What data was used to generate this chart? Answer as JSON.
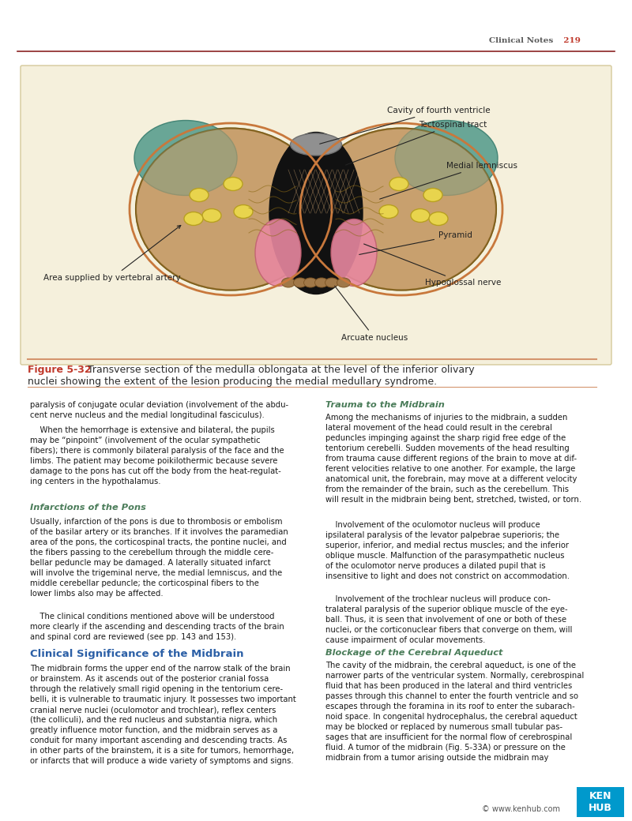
{
  "page_bg": "#ffffff",
  "header_text": "Clinical Notes",
  "header_number": "219",
  "header_color": "#5a5a5a",
  "header_number_color": "#c0392b",
  "header_line_color": "#8b2222",
  "figure_bg": "#f5f0dc",
  "figure_border_color": "#d4c99a",
  "fig_caption_label": "Figure 5-32",
  "fig_caption_label_color": "#c0392b",
  "fig_caption_color": "#2c2c2c",
  "section_heading1": "Infarctions of the Pons",
  "section_heading1_color": "#4a7c59",
  "section_heading2": "Clinical Significance of the Midbrain",
  "section_heading2_color": "#2b5fa6",
  "section_heading3": "Trauma to the Midbrain",
  "section_heading3_color": "#4a7c59",
  "section_heading4": "Blockage of the Cerebral Aqueduct",
  "section_heading4_color": "#4a7c59",
  "body_text_color": "#1a1a1a",
  "kenhub_bg": "#0099cc",
  "kenhub_text": "KEN\nHUB",
  "kenhub_text_color": "#ffffff",
  "copyright_text": "© www.kenhub.com",
  "copyright_color": "#555555"
}
